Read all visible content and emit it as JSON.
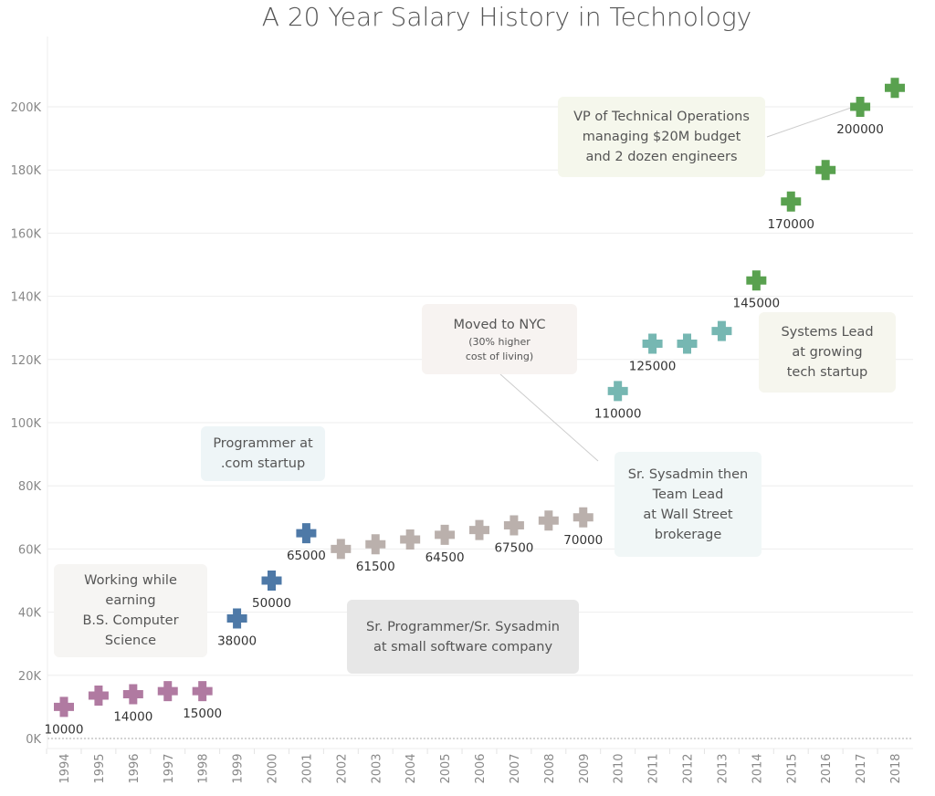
{
  "chart_data": {
    "type": "scatter",
    "title": "A 20 Year Salary History in Technology",
    "xlabel": "",
    "ylabel": "",
    "ylim": [
      0,
      220000
    ],
    "y_ticks": [
      "0K",
      "20K",
      "40K",
      "60K",
      "80K",
      "100K",
      "120K",
      "140K",
      "160K",
      "180K",
      "200K"
    ],
    "grid": true,
    "marker": "cross",
    "x": [
      "1994",
      "1995",
      "1996",
      "1997",
      "1998",
      "1999",
      "2000",
      "2001",
      "2002",
      "2003",
      "2004",
      "2005",
      "2006",
      "2007",
      "2008",
      "2009",
      "2010",
      "2011",
      "2012",
      "2013",
      "2014",
      "2015",
      "2016",
      "2017",
      "2018"
    ],
    "values": [
      10000,
      13600,
      14000,
      15000,
      15000,
      38000,
      50000,
      65000,
      60000,
      61500,
      63000,
      64500,
      66000,
      67500,
      69000,
      70000,
      110000,
      125000,
      125000,
      129000,
      145000,
      170000,
      180000,
      200000,
      206000
    ],
    "data_labels": [
      "10000",
      "",
      "14000",
      "",
      "15000",
      "38000",
      "50000",
      "65000",
      "",
      "61500",
      "",
      "64500",
      "",
      "67500",
      "",
      "70000",
      "110000",
      "125000",
      "",
      "",
      "145000",
      "170000",
      "",
      "200000",
      ""
    ],
    "colors": [
      "#b07aa1",
      "#b07aa1",
      "#b07aa1",
      "#b07aa1",
      "#b07aa1",
      "#4e79a7",
      "#4e79a7",
      "#4e79a7",
      "#bab0ac",
      "#bab0ac",
      "#bab0ac",
      "#bab0ac",
      "#bab0ac",
      "#bab0ac",
      "#bab0ac",
      "#bab0ac",
      "#76b7b2",
      "#76b7b2",
      "#76b7b2",
      "#76b7b2",
      "#59a14f",
      "#59a14f",
      "#59a14f",
      "#59a14f",
      "#59a14f"
    ],
    "annotations": [
      {
        "lines": [
          "Working while",
          "earning",
          "B.S. Computer",
          "Science"
        ]
      },
      {
        "lines": [
          "Programmer at",
          ".com startup"
        ]
      },
      {
        "lines": [
          "Sr. Programmer/Sr. Sysadmin",
          "at small software company"
        ]
      },
      {
        "lines": [
          "Moved to NYC"
        ],
        "small": [
          "(30% higher",
          "cost of living)"
        ]
      },
      {
        "lines": [
          "Sr. Sysadmin then",
          "Team Lead",
          "at Wall Street",
          "brokerage"
        ]
      },
      {
        "lines": [
          "Systems Lead",
          "at growing",
          "tech startup"
        ]
      },
      {
        "lines": [
          "VP of Technical Operations",
          "managing $20M budget",
          "and 2 dozen engineers"
        ]
      }
    ]
  }
}
